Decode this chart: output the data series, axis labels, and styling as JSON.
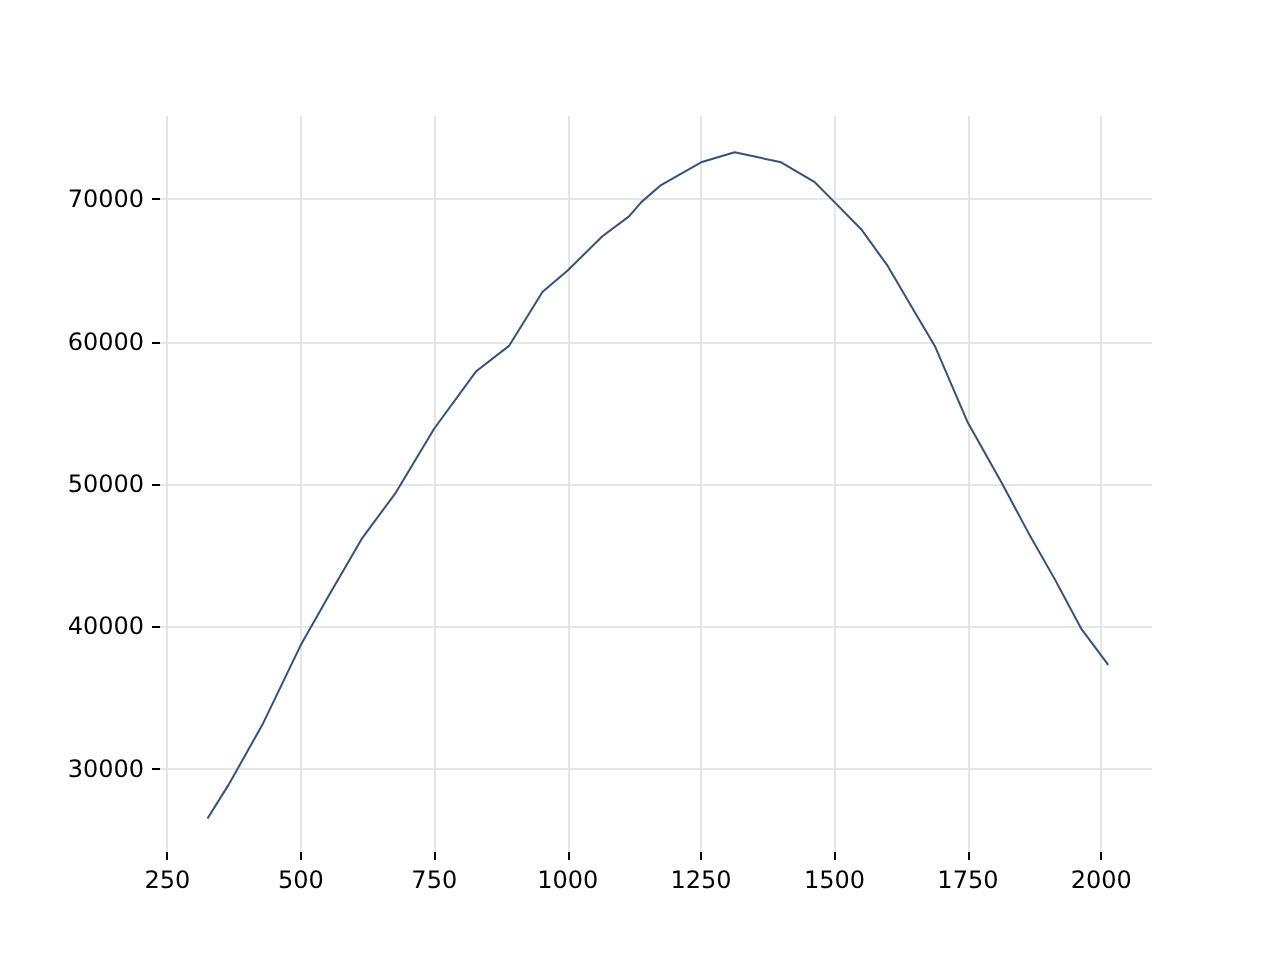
{
  "chart_data": {
    "type": "line",
    "grid": true,
    "marker": "none",
    "line_style": "solid",
    "xlim": [
      236,
      2095
    ],
    "ylim": [
      24150,
      75850
    ],
    "xticks": [
      250,
      500,
      750,
      1000,
      1250,
      1500,
      1750,
      2000
    ],
    "yticks": [
      30000,
      40000,
      50000,
      60000,
      70000
    ],
    "series": [
      {
        "color": "#34527a",
        "x": [
          325,
          365,
          428,
          500,
          553,
          615,
          678,
          750,
          828,
          890,
          953,
          1000,
          1065,
          1115,
          1138,
          1175,
          1250,
          1313,
          1400,
          1463,
          1500,
          1550,
          1600,
          1650,
          1688,
          1750,
          1813,
          1863,
          1913,
          1963,
          2013
        ],
        "values": [
          26500,
          28900,
          33100,
          38700,
          42200,
          46200,
          49400,
          53900,
          57900,
          59700,
          63500,
          65000,
          67400,
          68800,
          69800,
          71000,
          72600,
          73300,
          72600,
          71200,
          69800,
          67900,
          65300,
          62100,
          59700,
          54300,
          50100,
          46600,
          43300,
          39800,
          37300
        ]
      }
    ]
  }
}
